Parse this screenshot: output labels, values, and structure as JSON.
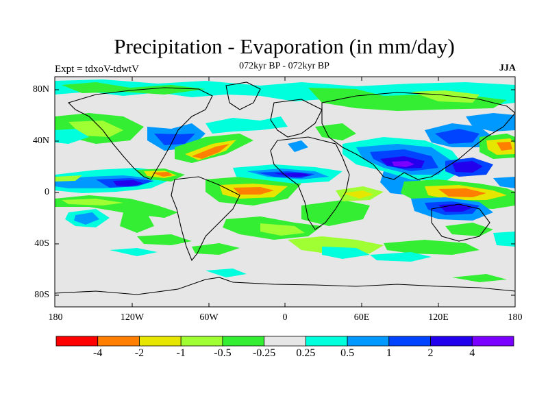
{
  "title": "Precipitation - Evaporation (in mm/day)",
  "subtitle": "072kyr BP - 072kyr BP",
  "left_label": "Expt = tdxoV-tdwtV",
  "right_label": "JJA",
  "y_ticks": [
    "80N",
    "40N",
    "0",
    "40S",
    "80S"
  ],
  "x_ticks": [
    "180",
    "120W",
    "60W",
    "0",
    "60E",
    "120E",
    "180"
  ],
  "colorbar": {
    "labels": [
      "-4",
      "-2",
      "-1",
      "-0.5",
      "-0.25",
      "0.25",
      "0.5",
      "1",
      "2",
      "4"
    ],
    "colors": [
      "#ff0000",
      "#ff7f00",
      "#e6e600",
      "#9fff33",
      "#33ee33",
      "#e6e6e6",
      "#00ffdd",
      "#0099ff",
      "#0044ff",
      "#2200ee",
      "#7a00ff"
    ]
  },
  "map": {
    "projection": "cylindrical equidistant",
    "lon_range": [
      -180,
      180
    ],
    "lat_range": [
      -90,
      90
    ],
    "ocean_background": "#e6e6e6"
  }
}
